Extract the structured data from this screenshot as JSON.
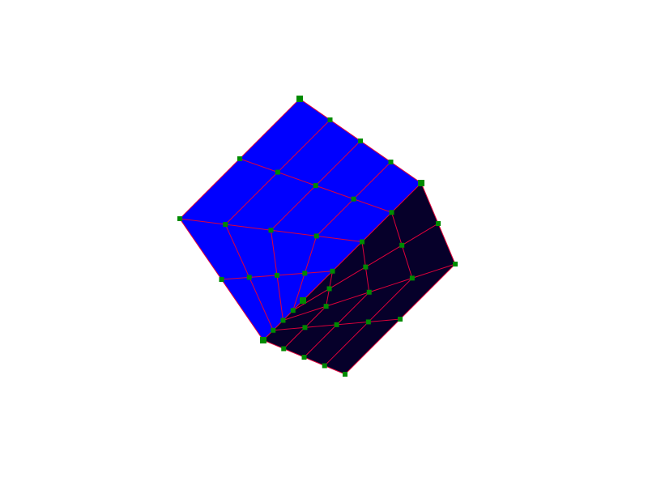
{
  "scene": {
    "background": "#ffffff",
    "object": "subdivided-cube",
    "divisions": 4,
    "visible_faces": [
      "top-face",
      "right-face"
    ]
  },
  "colors": {
    "top_face": "#0000ff",
    "right_face": "#06002a",
    "grid_lines": "#e0003a",
    "vertex_markers": "#008a00"
  }
}
